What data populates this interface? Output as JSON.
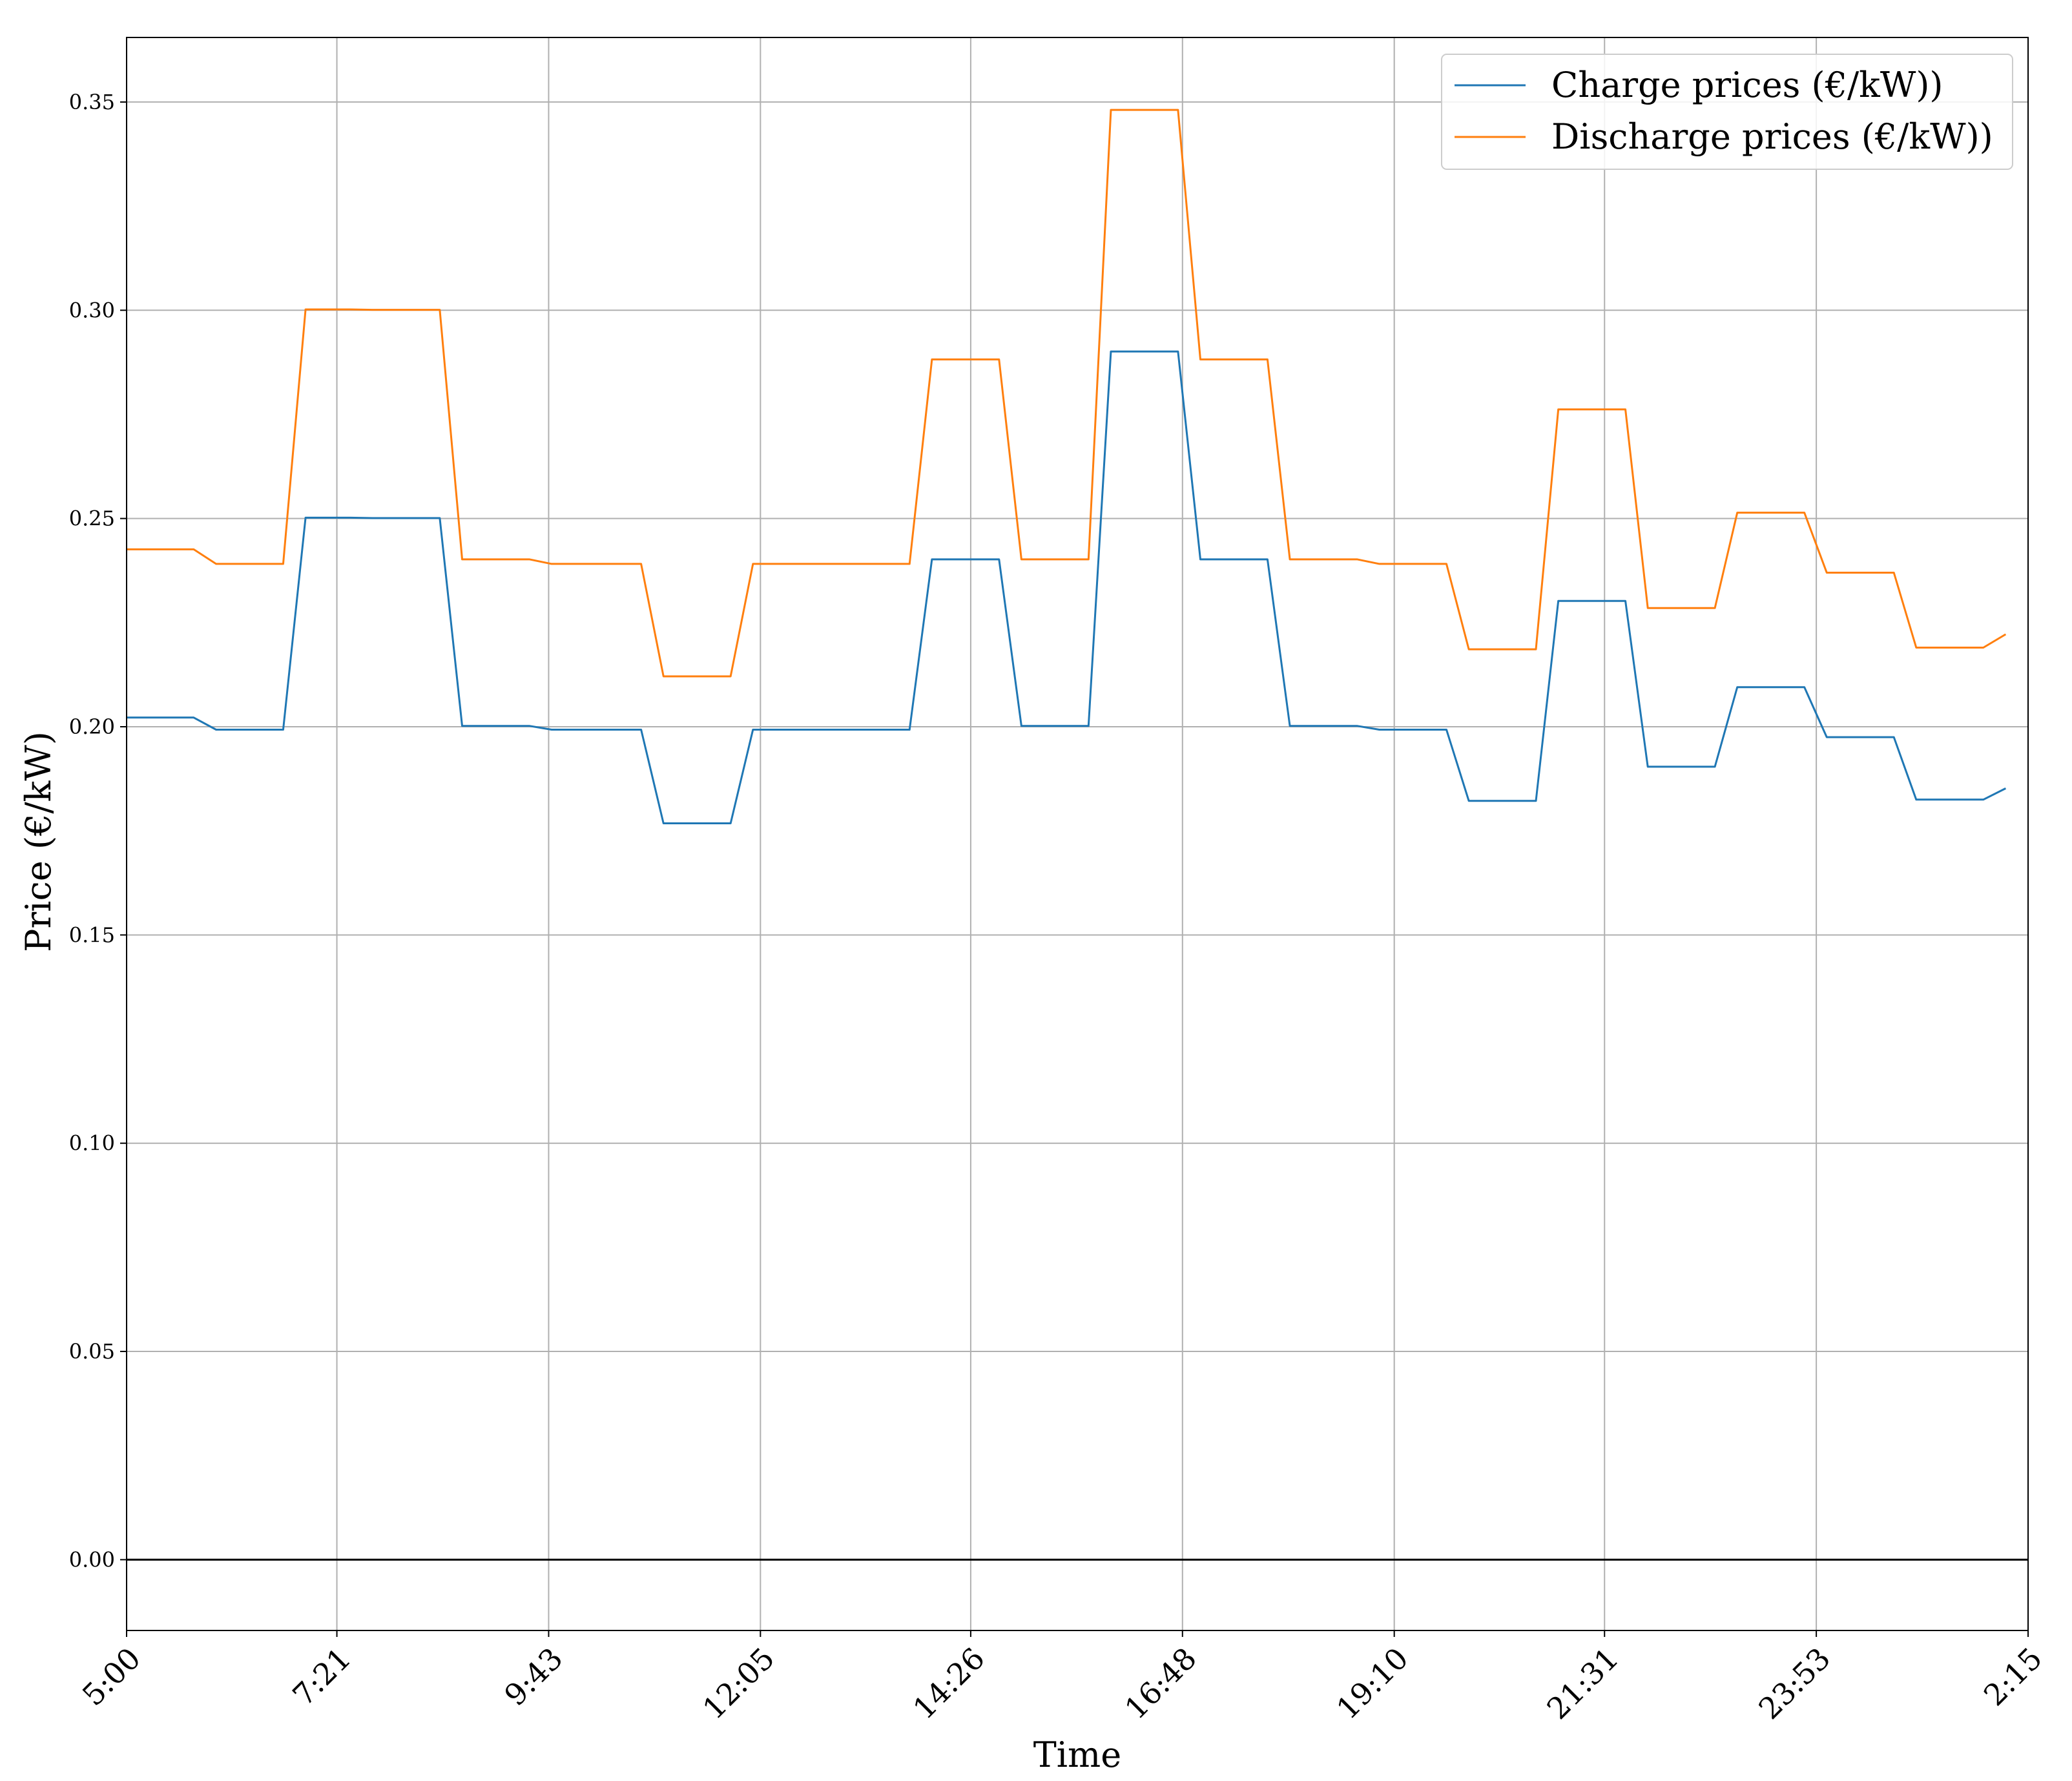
{
  "chart_data": {
    "type": "line",
    "title": "",
    "xlabel": "Time",
    "ylabel": "Price (€/kW)",
    "x_tick_labels": [
      "5:00",
      "7:21",
      "9:43",
      "12:05",
      "14:26",
      "16:48",
      "19:10",
      "21:31",
      "23:53",
      "2:15"
    ],
    "y_tick_labels": [
      "0.00",
      "0.05",
      "0.10",
      "0.15",
      "0.20",
      "0.25",
      "0.30",
      "0.35"
    ],
    "ylim": [
      -0.017,
      0.3655
    ],
    "xlim": [
      "5:00",
      "2:15"
    ],
    "grid": true,
    "zero_line": true,
    "legend_position": "top-right",
    "colors": {
      "charge": "#1f77b4",
      "discharge": "#ff7f0e",
      "grid": "#b0b0b0",
      "zero_line": "#000000"
    },
    "x": [
      "5:00",
      "5:15",
      "5:30",
      "5:45",
      "6:00",
      "6:15",
      "6:30",
      "6:45",
      "7:00",
      "7:15",
      "7:30",
      "7:45",
      "8:00",
      "8:15",
      "8:30",
      "8:45",
      "9:00",
      "9:15",
      "9:30",
      "9:45",
      "10:00",
      "10:15",
      "10:30",
      "10:45",
      "11:00",
      "11:15",
      "11:30",
      "11:45",
      "12:00",
      "12:15",
      "12:30",
      "12:45",
      "13:00",
      "13:15",
      "13:30",
      "13:45",
      "14:00",
      "14:15",
      "14:30",
      "14:45",
      "15:00",
      "15:15",
      "15:30",
      "15:45",
      "16:00",
      "16:15",
      "16:30",
      "16:45",
      "17:00",
      "17:15",
      "17:30",
      "17:45",
      "18:00",
      "18:15",
      "18:30",
      "18:45",
      "19:00",
      "19:15",
      "19:30",
      "19:45",
      "20:00",
      "20:15",
      "20:30",
      "20:45",
      "21:00",
      "21:15",
      "21:30",
      "21:45",
      "22:00",
      "22:15",
      "22:30",
      "22:45",
      "23:00",
      "23:15",
      "23:30",
      "23:45",
      "0:00",
      "0:15",
      "0:30",
      "0:45",
      "1:00",
      "1:15",
      "1:30",
      "1:45",
      "2:00"
    ],
    "series": [
      {
        "name": "Charge prices (€/kW))",
        "values": [
          0.2022,
          0.2022,
          0.2022,
          0.2022,
          0.1993,
          0.1993,
          0.1993,
          0.1993,
          0.2502,
          0.2502,
          0.2502,
          0.2501,
          0.2501,
          0.2501,
          0.2501,
          0.2002,
          0.2002,
          0.2002,
          0.2002,
          0.1993,
          0.1993,
          0.1993,
          0.1993,
          0.1993,
          0.1768,
          0.1768,
          0.1768,
          0.1768,
          0.1993,
          0.1993,
          0.1993,
          0.1993,
          0.1993,
          0.1993,
          0.1993,
          0.1993,
          0.2402,
          0.2402,
          0.2402,
          0.2402,
          0.2002,
          0.2002,
          0.2002,
          0.2002,
          0.2901,
          0.2901,
          0.2901,
          0.2901,
          0.2402,
          0.2402,
          0.2402,
          0.2402,
          0.2002,
          0.2002,
          0.2002,
          0.2002,
          0.1993,
          0.1993,
          0.1993,
          0.1993,
          0.1822,
          0.1822,
          0.1822,
          0.1822,
          0.2302,
          0.2302,
          0.2302,
          0.2302,
          0.1904,
          0.1904,
          0.1904,
          0.1904,
          0.2095,
          0.2095,
          0.2095,
          0.2095,
          0.1975,
          0.1975,
          0.1975,
          0.1975,
          0.1825,
          0.1825,
          0.1825,
          0.1825,
          0.1852
        ]
      },
      {
        "name": "Discharge prices (€/kW))",
        "values": [
          0.2426,
          0.2426,
          0.2426,
          0.2426,
          0.2391,
          0.2391,
          0.2391,
          0.2391,
          0.3002,
          0.3002,
          0.3002,
          0.3001,
          0.3001,
          0.3001,
          0.3001,
          0.2402,
          0.2402,
          0.2402,
          0.2402,
          0.2391,
          0.2391,
          0.2391,
          0.2391,
          0.2391,
          0.2121,
          0.2121,
          0.2121,
          0.2121,
          0.2391,
          0.2391,
          0.2391,
          0.2391,
          0.2391,
          0.2391,
          0.2391,
          0.2391,
          0.2882,
          0.2882,
          0.2882,
          0.2882,
          0.2402,
          0.2402,
          0.2402,
          0.2402,
          0.3481,
          0.3481,
          0.3481,
          0.3481,
          0.2882,
          0.2882,
          0.2882,
          0.2882,
          0.2402,
          0.2402,
          0.2402,
          0.2402,
          0.2391,
          0.2391,
          0.2391,
          0.2391,
          0.2186,
          0.2186,
          0.2186,
          0.2186,
          0.2762,
          0.2762,
          0.2762,
          0.2762,
          0.2285,
          0.2285,
          0.2285,
          0.2285,
          0.2514,
          0.2514,
          0.2514,
          0.2514,
          0.237,
          0.237,
          0.237,
          0.237,
          0.219,
          0.219,
          0.219,
          0.219,
          0.2222
        ]
      }
    ]
  }
}
